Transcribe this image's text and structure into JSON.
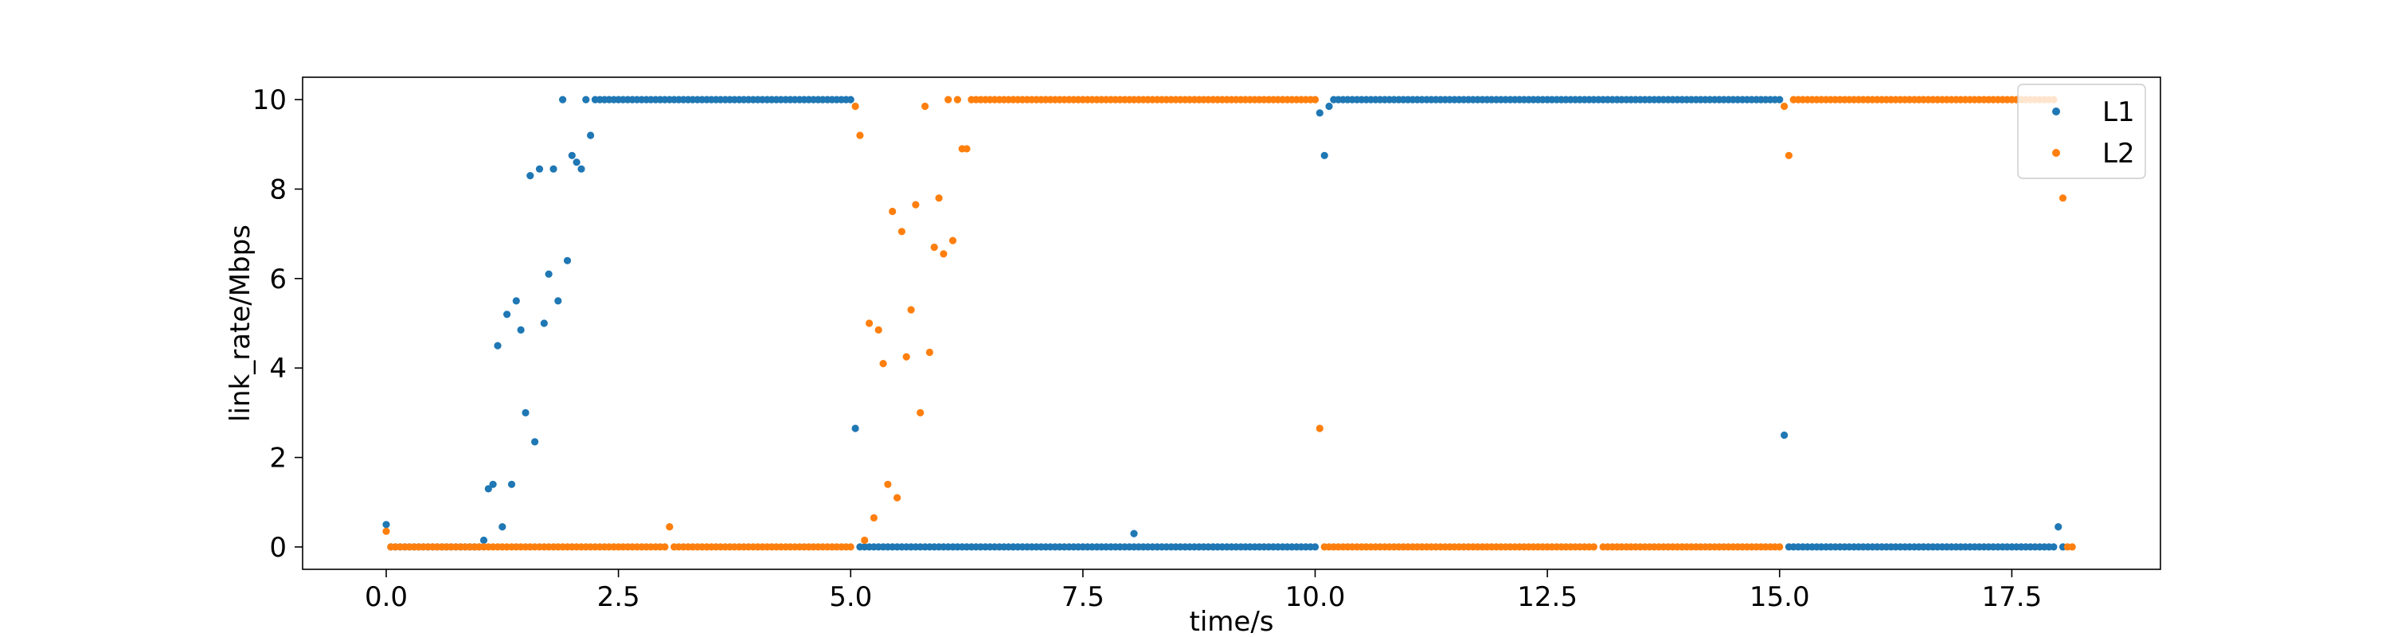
{
  "chart_data": {
    "type": "scatter",
    "xlabel": "time/s",
    "ylabel": "link_rate/Mbps",
    "xlim": [
      -0.9,
      19.1
    ],
    "ylim": [
      -0.5,
      10.5
    ],
    "xticks": [
      0.0,
      2.5,
      5.0,
      7.5,
      10.0,
      12.5,
      15.0,
      17.5
    ],
    "xtick_labels": [
      "0.0",
      "2.5",
      "5.0",
      "7.5",
      "10.0",
      "12.5",
      "15.0",
      "17.5"
    ],
    "yticks": [
      0,
      2,
      4,
      6,
      8,
      10
    ],
    "ytick_labels": [
      "0",
      "2",
      "4",
      "6",
      "8",
      "10"
    ],
    "grid": false,
    "legend": "top-right",
    "series": [
      {
        "name": "L1",
        "color": "#1f77b4",
        "segments": [
          {
            "from": 0.05,
            "to": 1.0,
            "step": 0.05,
            "y": 0
          },
          {
            "from": 2.25,
            "to": 5.0,
            "step": 0.05,
            "y": 10
          },
          {
            "from": 5.15,
            "to": 10.0,
            "step": 0.05,
            "y": 0
          },
          {
            "from": 10.2,
            "to": 15.0,
            "step": 0.05,
            "y": 10
          },
          {
            "from": 15.1,
            "to": 17.95,
            "step": 0.05,
            "y": 0
          }
        ],
        "points": [
          [
            0.0,
            0.5
          ],
          [
            1.05,
            0.15
          ],
          [
            1.1,
            1.3
          ],
          [
            1.15,
            1.4
          ],
          [
            1.2,
            4.5
          ],
          [
            1.25,
            0.45
          ],
          [
            1.3,
            5.2
          ],
          [
            1.35,
            1.4
          ],
          [
            1.4,
            5.5
          ],
          [
            1.45,
            4.85
          ],
          [
            1.5,
            3.0
          ],
          [
            1.55,
            8.3
          ],
          [
            1.6,
            2.35
          ],
          [
            1.65,
            8.45
          ],
          [
            1.7,
            5.0
          ],
          [
            1.75,
            6.1
          ],
          [
            1.8,
            8.45
          ],
          [
            1.85,
            5.5
          ],
          [
            1.9,
            10.0
          ],
          [
            1.95,
            6.4
          ],
          [
            2.0,
            8.75
          ],
          [
            2.05,
            8.6
          ],
          [
            2.1,
            8.45
          ],
          [
            2.15,
            10.0
          ],
          [
            2.2,
            9.2
          ],
          [
            5.05,
            2.65
          ],
          [
            5.1,
            0.0
          ],
          [
            8.05,
            0.3
          ],
          [
            10.05,
            9.7
          ],
          [
            10.1,
            8.75
          ],
          [
            10.15,
            9.85
          ],
          [
            15.05,
            2.5
          ],
          [
            18.0,
            0.45
          ],
          [
            18.05,
            0.0
          ]
        ]
      },
      {
        "name": "L2",
        "color": "#ff7f0e",
        "segments": [
          {
            "from": 0.05,
            "to": 3.0,
            "step": 0.05,
            "y": 0
          },
          {
            "from": 3.1,
            "to": 5.0,
            "step": 0.05,
            "y": 0
          },
          {
            "from": 6.35,
            "to": 10.0,
            "step": 0.05,
            "y": 10
          },
          {
            "from": 10.1,
            "to": 13.0,
            "step": 0.05,
            "y": 0
          },
          {
            "from": 13.1,
            "to": 15.0,
            "step": 0.05,
            "y": 0
          },
          {
            "from": 15.15,
            "to": 17.95,
            "step": 0.05,
            "y": 10
          }
        ],
        "points": [
          [
            0.0,
            0.35
          ],
          [
            3.05,
            0.45
          ],
          [
            5.05,
            9.85
          ],
          [
            5.1,
            9.2
          ],
          [
            5.15,
            0.15
          ],
          [
            5.2,
            5.0
          ],
          [
            5.25,
            0.65
          ],
          [
            5.3,
            4.85
          ],
          [
            5.35,
            4.1
          ],
          [
            5.4,
            1.4
          ],
          [
            5.45,
            7.5
          ],
          [
            5.5,
            1.1
          ],
          [
            5.55,
            7.05
          ],
          [
            5.6,
            4.25
          ],
          [
            5.65,
            5.3
          ],
          [
            5.7,
            7.65
          ],
          [
            5.75,
            3.0
          ],
          [
            5.8,
            9.85
          ],
          [
            5.85,
            4.35
          ],
          [
            5.9,
            6.7
          ],
          [
            5.95,
            7.8
          ],
          [
            6.0,
            6.55
          ],
          [
            6.05,
            10.0
          ],
          [
            6.1,
            6.85
          ],
          [
            6.15,
            10.0
          ],
          [
            6.2,
            8.9
          ],
          [
            6.25,
            8.9
          ],
          [
            6.3,
            10.0
          ],
          [
            10.05,
            2.65
          ],
          [
            15.05,
            9.85
          ],
          [
            15.1,
            8.75
          ],
          [
            18.05,
            7.8
          ],
          [
            18.1,
            0.0
          ],
          [
            18.15,
            0.0
          ]
        ]
      }
    ]
  }
}
